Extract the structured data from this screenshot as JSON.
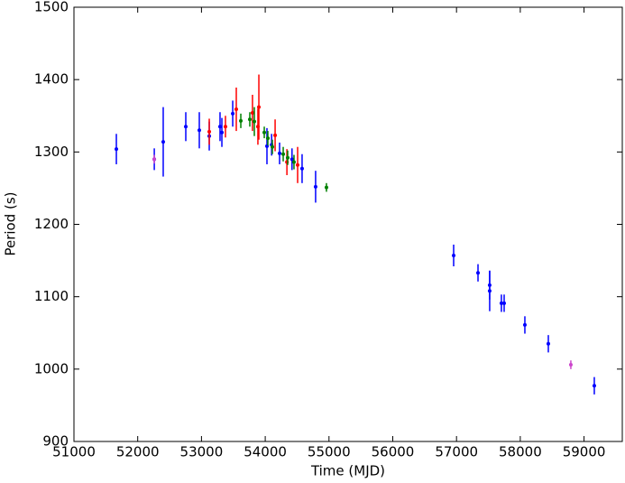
{
  "chart_data": {
    "type": "errorbar-scatter",
    "x_label": "Time (MJD)",
    "y_label": "Period (s)",
    "xlim": [
      51000,
      59600
    ],
    "ylim": [
      900,
      1500
    ],
    "xticks": [
      51000,
      52000,
      53000,
      54000,
      55000,
      56000,
      57000,
      58000,
      59000
    ],
    "yticks": [
      900,
      1000,
      1100,
      1200,
      1300,
      1400,
      1500
    ],
    "series": [
      {
        "color": "#0000ff",
        "x": [
          51665,
          52260,
          52400,
          52754,
          52966,
          53122,
          53291,
          53320,
          53490,
          54027,
          54100,
          54225,
          54420,
          54578,
          54790,
          56955,
          57337,
          57520,
          57520,
          57704,
          57747,
          58072,
          58440,
          59161
        ],
        "values": [
          1304,
          1290,
          1314,
          1335,
          1330,
          1322,
          1335,
          1327,
          1353,
          1308,
          1310,
          1298,
          1290,
          1277,
          1252,
          1157,
          1133,
          1116,
          1108,
          1091,
          1091,
          1061,
          1035,
          977
        ],
        "errors": [
          21,
          15,
          48,
          20,
          25,
          20,
          20,
          20,
          18,
          25,
          15,
          15,
          15,
          20,
          22,
          15,
          12,
          20,
          28,
          12,
          12,
          12,
          12,
          12
        ]
      },
      {
        "color": "#ff0000",
        "x": [
          53122,
          53376,
          53546,
          53800,
          53885,
          53900,
          54155,
          54340,
          54508
        ],
        "values": [
          1328,
          1335,
          1359,
          1354,
          1335,
          1362,
          1323,
          1286,
          1282
        ],
        "errors": [
          18,
          15,
          30,
          25,
          25,
          45,
          22,
          18,
          25
        ]
      },
      {
        "color": "#008000",
        "x": [
          53617,
          53758,
          53829,
          53985,
          54041,
          54112,
          54282,
          54352,
          54451,
          54960
        ],
        "values": [
          1343,
          1345,
          1342,
          1327,
          1319,
          1307,
          1297,
          1292,
          1286,
          1251
        ],
        "errors": [
          10,
          10,
          20,
          8,
          10,
          10,
          10,
          10,
          10,
          6
        ]
      },
      {
        "color": "#cc44cc",
        "x": [
          52259,
          58793
        ],
        "values": [
          1290,
          1006
        ],
        "errors": [
          6,
          6
        ]
      }
    ]
  }
}
